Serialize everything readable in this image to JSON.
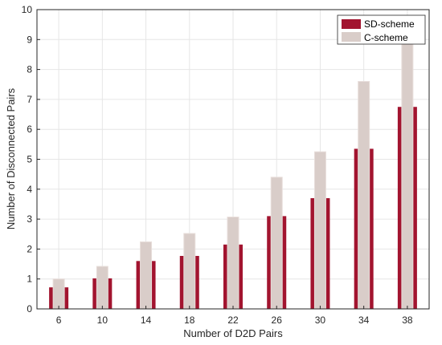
{
  "chart_data": {
    "type": "bar",
    "title": "",
    "xlabel": "Number of D2D Pairs",
    "ylabel": "Number of Disconnected Pairs",
    "categories": [
      "6",
      "10",
      "14",
      "18",
      "22",
      "26",
      "30",
      "34",
      "38"
    ],
    "ylim": [
      0,
      10
    ],
    "yticks": [
      0,
      1,
      2,
      3,
      4,
      5,
      6,
      7,
      8,
      9,
      10
    ],
    "grid": true,
    "legend_position": "top-right",
    "series": [
      {
        "name": "SD-scheme",
        "color": "#a2142f",
        "values": [
          0.72,
          1.02,
          1.6,
          1.77,
          2.15,
          3.1,
          3.7,
          5.35,
          6.75
        ]
      },
      {
        "name": "C-scheme",
        "color": "#d9cdc9",
        "values": [
          1.0,
          1.42,
          2.24,
          2.52,
          3.07,
          4.4,
          5.25,
          7.6,
          8.88
        ]
      }
    ]
  }
}
